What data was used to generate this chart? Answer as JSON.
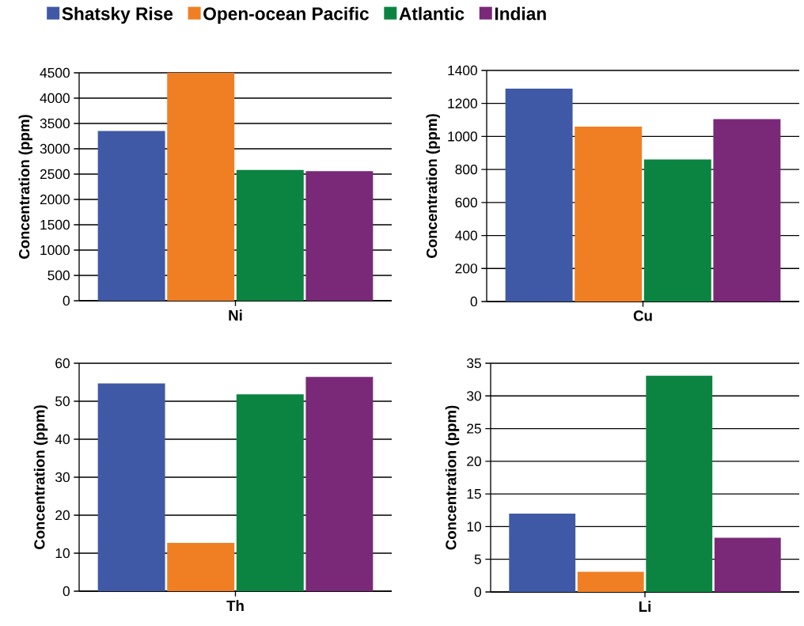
{
  "chart_data": [
    {
      "type": "bar",
      "categories": [
        "Ni"
      ],
      "ylabel": "Concentration (ppm)",
      "ylim": [
        0,
        4500
      ],
      "yticks": [
        0,
        500,
        1000,
        1500,
        2000,
        2500,
        3000,
        3500,
        4000,
        4500
      ],
      "grid": "y",
      "legend": "top",
      "series": [
        {
          "name": "Shatsky Rise",
          "color": "#3f59a6",
          "values": [
            3350
          ]
        },
        {
          "name": "Open-ocean Pacific",
          "color": "#f07f24",
          "values": [
            4500
          ]
        },
        {
          "name": "Atlantic",
          "color": "#0b8441",
          "values": [
            2580
          ]
        },
        {
          "name": "Indian",
          "color": "#792978",
          "values": [
            2560
          ]
        }
      ]
    },
    {
      "type": "bar",
      "categories": [
        "Cu"
      ],
      "ylabel": "Concentration (ppm)",
      "ylim": [
        0,
        1400
      ],
      "yticks": [
        0,
        200,
        400,
        600,
        800,
        1000,
        1200,
        1400
      ],
      "grid": "y",
      "series": [
        {
          "color": "#3f59a6",
          "values": [
            1290
          ]
        },
        {
          "color": "#f07f24",
          "values": [
            1060
          ]
        },
        {
          "color": "#0b8441",
          "values": [
            860
          ]
        },
        {
          "color": "#792978",
          "values": [
            1105
          ]
        }
      ]
    },
    {
      "type": "bar",
      "categories": [
        "Th"
      ],
      "ylabel": "Concentration (ppm)",
      "ylim": [
        0,
        60
      ],
      "yticks": [
        0,
        10,
        20,
        30,
        40,
        50,
        60
      ],
      "grid": "y",
      "series": [
        {
          "color": "#3f59a6",
          "values": [
            54.7
          ]
        },
        {
          "color": "#f07f24",
          "values": [
            12.7
          ]
        },
        {
          "color": "#0b8441",
          "values": [
            51.8
          ]
        },
        {
          "color": "#792978",
          "values": [
            56.4
          ]
        }
      ]
    },
    {
      "type": "bar",
      "categories": [
        "Li"
      ],
      "ylabel": "Concentration (ppm)",
      "ylim": [
        0,
        35
      ],
      "yticks": [
        0,
        5,
        10,
        15,
        20,
        25,
        30,
        35
      ],
      "grid": "y",
      "series": [
        {
          "color": "#3f59a6",
          "values": [
            12.0
          ]
        },
        {
          "color": "#f07f24",
          "values": [
            3.1
          ]
        },
        {
          "color": "#0b8441",
          "values": [
            33.1
          ]
        },
        {
          "color": "#792978",
          "values": [
            8.3
          ]
        }
      ]
    }
  ]
}
